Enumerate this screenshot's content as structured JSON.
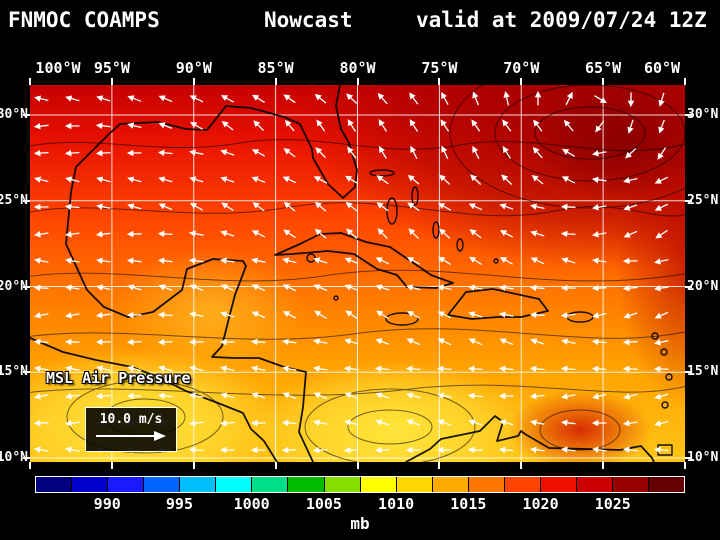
{
  "header": {
    "model": "FNMOC COAMPS",
    "product": "Nowcast",
    "valid_time": "valid at 2009/07/24 12Z"
  },
  "map": {
    "lon_labels": [
      "100°W",
      "95°W",
      "90°W",
      "85°W",
      "80°W",
      "75°W",
      "70°W",
      "65°W",
      "60°W"
    ],
    "lat_labels": [
      "30°N",
      "25°N",
      "20°N",
      "15°N",
      "10°N"
    ],
    "field_label": "MSL Air Pressure",
    "wind_scale_label": "10.0 m/s"
  },
  "colorbar": {
    "unit": "mb",
    "tick_labels": [
      "990",
      "995",
      "1000",
      "1005",
      "1010",
      "1015",
      "1020",
      "1025"
    ],
    "segment_colors": [
      "#000080",
      "#0000cc",
      "#1a1aff",
      "#0066ff",
      "#00bfff",
      "#00ffff",
      "#00dd88",
      "#00bb00",
      "#88dd00",
      "#ffff00",
      "#ffd700",
      "#ffaa00",
      "#ff7700",
      "#ff4400",
      "#ee1100",
      "#cc0000",
      "#990000",
      "#660000"
    ]
  }
}
